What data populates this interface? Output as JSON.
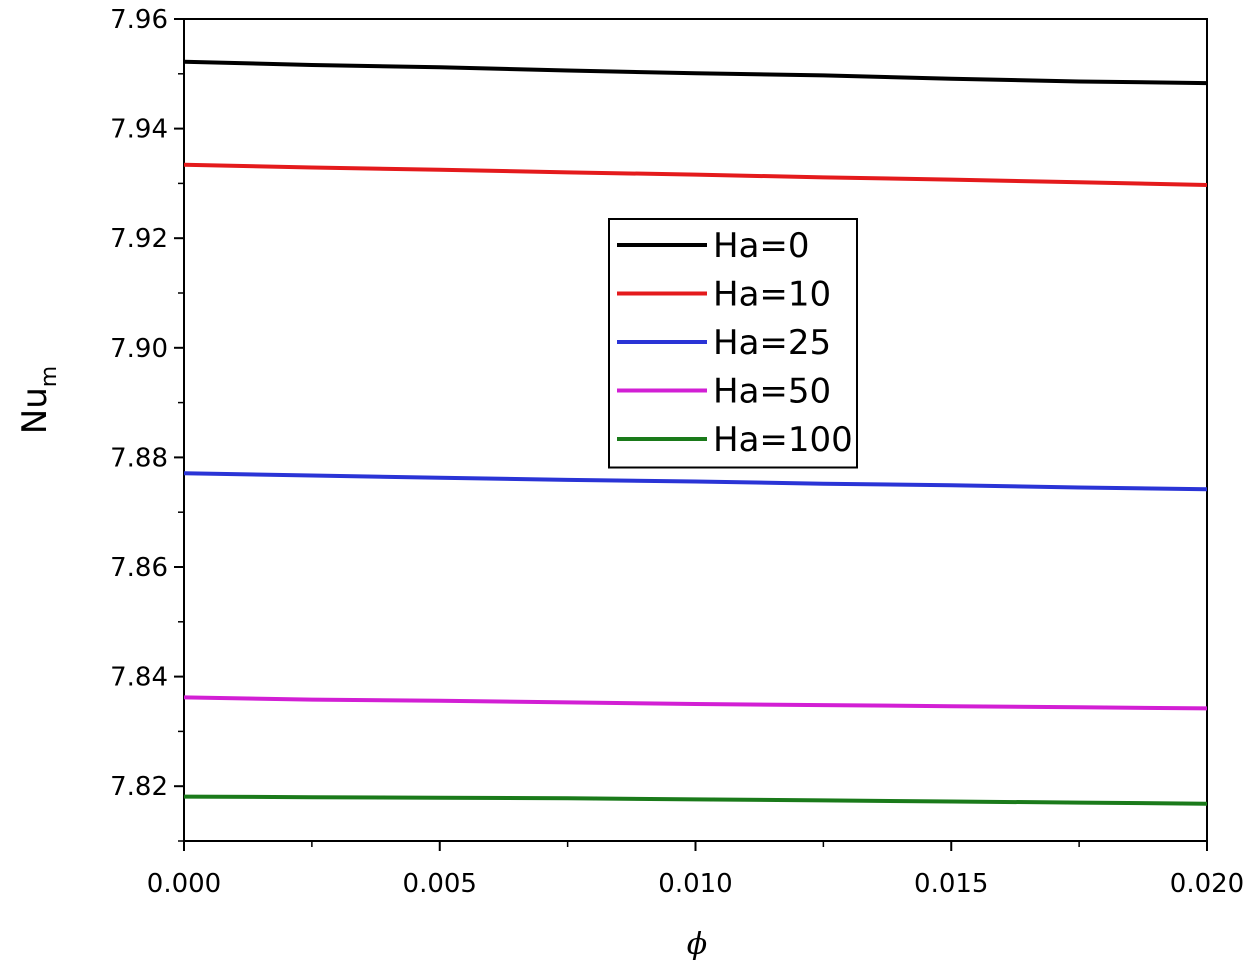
{
  "chart_data": {
    "type": "line",
    "title": "",
    "xlabel": "ϕ",
    "ylabel": "Nu",
    "ylabel_subscript": "m",
    "xlim": [
      0.0,
      0.02
    ],
    "ylim": [
      7.81,
      7.96
    ],
    "x_ticks": [
      "0.000",
      "0.005",
      "0.010",
      "0.015",
      "0.020"
    ],
    "y_ticks": [
      "7.82",
      "7.84",
      "7.86",
      "7.88",
      "7.90",
      "7.92",
      "7.94",
      "7.96"
    ],
    "grid": false,
    "legend_position": "center",
    "x": [
      0.0,
      0.0025,
      0.005,
      0.0075,
      0.01,
      0.0125,
      0.015,
      0.0175,
      0.02
    ],
    "series": [
      {
        "name": "Ha=0",
        "color": "#000000",
        "values": [
          7.9522,
          7.9516,
          7.9512,
          7.9506,
          7.9501,
          7.9497,
          7.9491,
          7.9486,
          7.9483
        ]
      },
      {
        "name": "Ha=10",
        "color": "#e41a1c",
        "values": [
          7.9334,
          7.9329,
          7.9325,
          7.932,
          7.9316,
          7.9311,
          7.9307,
          7.9302,
          7.9297
        ]
      },
      {
        "name": "Ha=25",
        "color": "#2a34d6",
        "values": [
          7.8771,
          7.8767,
          7.8763,
          7.8759,
          7.8756,
          7.8752,
          7.8749,
          7.8745,
          7.8742
        ]
      },
      {
        "name": "Ha=50",
        "color": "#d21fd4",
        "values": [
          7.8362,
          7.8358,
          7.8356,
          7.8353,
          7.835,
          7.8348,
          7.8346,
          7.8344,
          7.8342
        ]
      },
      {
        "name": "Ha=100",
        "color": "#1a7a1a",
        "values": [
          7.8181,
          7.818,
          7.8179,
          7.8178,
          7.8176,
          7.8174,
          7.8172,
          7.817,
          7.8168
        ]
      }
    ]
  }
}
